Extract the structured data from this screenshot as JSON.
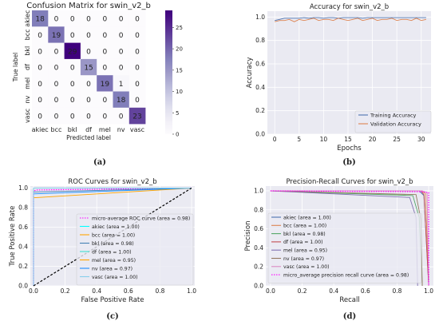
{
  "colors": {
    "cm_low": "#fbf9fc",
    "cm_high": "#3f007d",
    "train": "#4c72b0",
    "val": "#dd8452",
    "micro": "#ff00ff",
    "grid": "#ffffff",
    "panel_bg": "#eaeaf2",
    "diag": "#000000"
  },
  "chart_data": [
    {
      "id": "a",
      "type": "heatmap",
      "panel_label": "(a)",
      "title": "Confusion Matrix for swin_v2_b",
      "xlabel": "Predicted label",
      "ylabel": "True label",
      "labels": [
        "akiec",
        "bcc",
        "bkl",
        "df",
        "mel",
        "nv",
        "vasc"
      ],
      "matrix": [
        [
          18,
          0,
          0,
          0,
          0,
          0,
          0
        ],
        [
          0,
          19,
          0,
          0,
          0,
          0,
          0
        ],
        [
          0,
          0,
          29,
          0,
          0,
          0,
          0
        ],
        [
          0,
          0,
          0,
          15,
          0,
          0,
          0
        ],
        [
          0,
          0,
          0,
          0,
          19,
          1,
          0
        ],
        [
          0,
          0,
          0,
          0,
          0,
          18,
          0
        ],
        [
          0,
          0,
          0,
          0,
          0,
          0,
          23
        ]
      ],
      "colorbar": {
        "min": 0,
        "max": 29,
        "ticks": [
          0,
          5,
          10,
          15,
          20,
          25
        ]
      }
    },
    {
      "id": "b",
      "type": "line",
      "panel_label": "(b)",
      "title": "Accuracy for swin_v2_b",
      "xlabel": "Epochs",
      "ylabel": "Accuracy",
      "xlim": [
        -1.5,
        32
      ],
      "ylim": [
        0,
        1.05
      ],
      "xticks": [
        0,
        5,
        10,
        15,
        20,
        25,
        30
      ],
      "yticks": [
        0.0,
        0.2,
        0.4,
        0.6,
        0.8,
        1.0
      ],
      "legend": "lower-right",
      "series": [
        {
          "name": "Training Accuracy",
          "color_key": "train",
          "x": [
            0,
            1,
            2,
            3,
            4,
            5,
            6,
            7,
            8,
            9,
            10,
            11,
            12,
            13,
            14,
            15,
            16,
            17,
            18,
            19,
            20,
            21,
            22,
            23,
            24,
            25,
            26,
            27,
            28,
            29,
            30,
            31
          ],
          "values": [
            0.97,
            0.98,
            0.99,
            0.99,
            0.99,
            0.99,
            0.995,
            0.99,
            0.995,
            0.995,
            0.99,
            0.995,
            0.995,
            0.99,
            0.995,
            0.995,
            0.995,
            0.995,
            0.99,
            0.995,
            0.995,
            0.995,
            0.995,
            0.995,
            0.995,
            0.995,
            0.995,
            0.995,
            0.995,
            0.995,
            0.995,
            0.995
          ]
        },
        {
          "name": "Validation Accuracy",
          "color_key": "val",
          "x": [
            0,
            1,
            2,
            3,
            4,
            5,
            6,
            7,
            8,
            9,
            10,
            11,
            12,
            13,
            14,
            15,
            16,
            17,
            18,
            19,
            20,
            21,
            22,
            23,
            24,
            25,
            26,
            27,
            28,
            29,
            30,
            31
          ],
          "values": [
            0.96,
            0.97,
            0.97,
            0.98,
            0.96,
            0.98,
            0.97,
            0.98,
            0.99,
            0.97,
            0.98,
            0.98,
            0.97,
            0.99,
            0.98,
            0.97,
            0.98,
            0.99,
            0.97,
            0.98,
            0.99,
            0.97,
            0.98,
            0.98,
            0.99,
            0.97,
            0.98,
            0.98,
            0.97,
            0.99,
            0.97,
            0.98
          ]
        }
      ]
    },
    {
      "id": "c",
      "type": "line",
      "panel_label": "(c)",
      "title": "ROC Curves for swin_v2_b",
      "xlabel": "False Positive Rate",
      "ylabel": "True Positive Rate",
      "xlim": [
        -0.02,
        1.02
      ],
      "ylim": [
        0.0,
        1.02
      ],
      "xticks": [
        0.0,
        0.2,
        0.4,
        0.6,
        0.8,
        1.0
      ],
      "yticks": [
        0.0,
        0.2,
        0.4,
        0.6,
        0.8,
        1.0
      ],
      "legend": "center-right",
      "series": [
        {
          "name": "micro-average ROC curve (area = 0.98)",
          "color": "#ff00ff",
          "dash": "dotted",
          "x": [
            0,
            0,
            0.02,
            1
          ],
          "values": [
            0,
            0.97,
            0.98,
            1
          ]
        },
        {
          "name": "akiec (area = 1.00)",
          "color": "#00ffff",
          "x": [
            0,
            0,
            1
          ],
          "values": [
            0,
            1.0,
            1
          ]
        },
        {
          "name": "bcc (area = 1.00)",
          "color": "#ffa500",
          "x": [
            0,
            0,
            1
          ],
          "values": [
            0,
            1.0,
            1
          ]
        },
        {
          "name": "bkl (area = 0.98)",
          "color": "#4682b4",
          "x": [
            0,
            0,
            1
          ],
          "values": [
            0,
            0.96,
            1
          ]
        },
        {
          "name": "df (area = 1.00)",
          "color": "#40e0d0",
          "x": [
            0,
            0,
            1
          ],
          "values": [
            0,
            1.0,
            1
          ]
        },
        {
          "name": "mel (area = 0.95)",
          "color": "#ffa500",
          "x": [
            0,
            0,
            1
          ],
          "values": [
            0,
            0.9,
            1
          ]
        },
        {
          "name": "nv (area = 0.97)",
          "color": "#1e90ff",
          "x": [
            0,
            0,
            1
          ],
          "values": [
            0,
            0.94,
            1
          ]
        },
        {
          "name": "vasc (area = 1.00)",
          "color": "#87ceeb",
          "x": [
            0,
            0,
            1
          ],
          "values": [
            0,
            1.0,
            1
          ]
        },
        {
          "name": "",
          "color": "#000000",
          "dash": "dashed",
          "x": [
            0,
            1
          ],
          "values": [
            0,
            1
          ],
          "no_legend": true
        }
      ]
    },
    {
      "id": "d",
      "type": "line",
      "panel_label": "(d)",
      "title": "Precision-Recall Curves for swin_v2_b",
      "xlabel": "Recall",
      "ylabel": "Precision",
      "xlim": [
        -0.03,
        1.03
      ],
      "ylim": [
        0.0,
        1.05
      ],
      "xticks": [
        0.0,
        0.2,
        0.4,
        0.6,
        0.8,
        1.0
      ],
      "yticks": [
        0.0,
        0.2,
        0.4,
        0.6,
        0.8,
        1.0
      ],
      "legend": "lower-left",
      "series": [
        {
          "name": "akiec (area = 1.00)",
          "color": "#4c72b0",
          "x": [
            0,
            0.94,
            0.97,
            1.0
          ],
          "values": [
            1.0,
            1.0,
            0.95,
            0.0
          ]
        },
        {
          "name": "bcc (area = 1.00)",
          "color": "#dd8452",
          "x": [
            0,
            0.95,
            0.98,
            1.0
          ],
          "values": [
            1.0,
            1.0,
            0.97,
            0.0
          ]
        },
        {
          "name": "bkl (area = 0.98)",
          "color": "#55a868",
          "x": [
            0,
            0.9,
            0.94,
            0.96
          ],
          "values": [
            1.0,
            0.95,
            0.72,
            0.0
          ]
        },
        {
          "name": "df (area = 1.00)",
          "color": "#c44e52",
          "x": [
            0,
            0.95,
            0.97,
            1.0
          ],
          "values": [
            1.0,
            1.0,
            0.96,
            0.0
          ]
        },
        {
          "name": "mel (area = 0.95)",
          "color": "#8172b3",
          "x": [
            0,
            0.88,
            0.92,
            0.93
          ],
          "values": [
            1.0,
            0.93,
            0.72,
            0.0
          ]
        },
        {
          "name": "nv (area = 0.97)",
          "color": "#937860",
          "x": [
            0,
            0.92,
            0.95,
            0.96
          ],
          "values": [
            1.0,
            0.96,
            0.7,
            0.0
          ]
        },
        {
          "name": "vasc (area = 1.00)",
          "color": "#da8bc3",
          "x": [
            0,
            0.96,
            0.99,
            1.0
          ],
          "values": [
            1.0,
            1.0,
            0.98,
            0.0
          ]
        },
        {
          "name": "micro_average precision recall curve (area = 0.98)",
          "color": "#ff00ff",
          "dash": "dotted",
          "x": [
            0,
            0.96,
            1.0,
            1.0
          ],
          "values": [
            1.0,
            0.99,
            0.98,
            0.0
          ]
        }
      ]
    }
  ]
}
